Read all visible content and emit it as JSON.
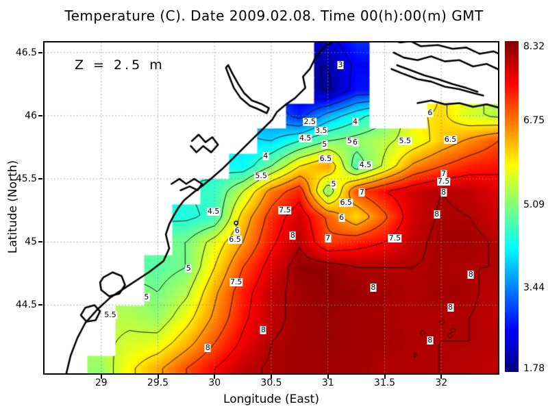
{
  "chart_data": {
    "type": "contour_heatmap",
    "title": "Temperature (C). Date 2009.02.08. Time 00(h):00(m) GMT",
    "xlabel": "Longitude (East)",
    "ylabel": "Latitude (North)",
    "annotation": "Z = 2.5 m",
    "xlim": [
      28.5,
      32.5
    ],
    "ylim": [
      43.96,
      46.58
    ],
    "xticks": [
      "29",
      "29.5",
      "30",
      "30.5",
      "31",
      "31.5",
      "32"
    ],
    "xtick_values": [
      29,
      29.5,
      30,
      30.5,
      31,
      31.5,
      32
    ],
    "yticks": [
      "44.5",
      "45",
      "45.5",
      "46",
      "46.5"
    ],
    "ytick_values": [
      44.5,
      45,
      45.5,
      46,
      46.5
    ],
    "grid_style": "dotted",
    "contour_interval": 0.5,
    "contour_levels": [
      2,
      2.5,
      3,
      3.5,
      4,
      4.5,
      5,
      5.5,
      6,
      6.5,
      7,
      7.5,
      8
    ],
    "colorbar": {
      "colormap": "jet",
      "min": 1.78,
      "max": 8.32,
      "labels": [
        "8.32",
        "6.75",
        "5.09",
        "3.44",
        "1.78"
      ],
      "label_values": [
        8.32,
        6.75,
        5.09,
        3.44,
        1.78
      ]
    },
    "field": {
      "units": "deg C",
      "lon_start": 28.5,
      "lon_step": 0.25,
      "lat_start": 46.6,
      "lat_step": -0.2,
      "land_value": null,
      "temps": [
        [
          null,
          null,
          null,
          null,
          null,
          null,
          null,
          null,
          null,
          null,
          2.3,
          2.9,
          null,
          null,
          null,
          null,
          null
        ],
        [
          null,
          null,
          null,
          null,
          null,
          null,
          null,
          null,
          null,
          null,
          2.0,
          2.6,
          null,
          null,
          null,
          null,
          null
        ],
        [
          null,
          null,
          null,
          null,
          null,
          null,
          null,
          null,
          null,
          null,
          1.9,
          2.7,
          null,
          null,
          null,
          null,
          null
        ],
        [
          null,
          null,
          null,
          null,
          null,
          null,
          null,
          null,
          null,
          2.8,
          3.7,
          4.3,
          null,
          null,
          6.1,
          5.6,
          5.4
        ],
        [
          null,
          null,
          null,
          null,
          null,
          null,
          null,
          null,
          4.0,
          4.5,
          5.0,
          5.2,
          5.4,
          5.7,
          6.2,
          6.6,
          7.0
        ],
        [
          null,
          null,
          null,
          null,
          null,
          null,
          null,
          4.2,
          5.0,
          6.0,
          6.5,
          4.7,
          5.6,
          6.6,
          7.0,
          7.3,
          7.4
        ],
        [
          null,
          null,
          null,
          null,
          null,
          null,
          4.6,
          5.5,
          6.7,
          7.3,
          5.1,
          7.0,
          7.5,
          7.8,
          8.0,
          7.9,
          7.7
        ],
        [
          null,
          null,
          null,
          null,
          null,
          4.4,
          4.6,
          6.2,
          7.2,
          7.8,
          6.9,
          6.1,
          6.9,
          7.8,
          8.05,
          8.0,
          7.8
        ],
        [
          null,
          null,
          null,
          null,
          null,
          5.0,
          5.7,
          6.5,
          7.4,
          7.95,
          7.1,
          7.3,
          7.5,
          7.9,
          8.1,
          8.1,
          7.95
        ],
        [
          null,
          null,
          null,
          null,
          4.8,
          5.0,
          6.0,
          7.0,
          7.7,
          8.2,
          8.2,
          8.0,
          8.0,
          8.0,
          8.05,
          8.0,
          8.0
        ],
        [
          null,
          null,
          null,
          null,
          5.0,
          5.4,
          6.4,
          7.3,
          7.9,
          8.1,
          8.2,
          8.15,
          8.1,
          8.0,
          8.1,
          8.05,
          7.9
        ],
        [
          null,
          null,
          null,
          5.4,
          5.2,
          5.8,
          6.6,
          7.4,
          7.9,
          8.1,
          8.15,
          8.1,
          8.05,
          8.0,
          8.0,
          8.0,
          7.9
        ],
        [
          null,
          null,
          null,
          5.6,
          5.7,
          6.3,
          7.0,
          7.6,
          8.0,
          8.1,
          8.15,
          8.1,
          8.1,
          8.0,
          8.0,
          8.0,
          7.95
        ],
        [
          null,
          null,
          5.2,
          5.9,
          6.4,
          7.0,
          7.5,
          7.9,
          8.05,
          8.1,
          8.1,
          8.1,
          8.0,
          8.0,
          8.0,
          7.95,
          7.9
        ]
      ]
    },
    "contour_labels": [
      {
        "v": "3",
        "lon": 31.11,
        "lat": 46.4
      },
      {
        "v": "2.5",
        "lon": 30.84,
        "lat": 45.95
      },
      {
        "v": "4",
        "lon": 31.24,
        "lat": 45.95
      },
      {
        "v": "3.5",
        "lon": 30.94,
        "lat": 45.88
      },
      {
        "v": "4.5",
        "lon": 30.8,
        "lat": 45.82
      },
      {
        "v": "5",
        "lon": 30.97,
        "lat": 45.77
      },
      {
        "v": "5",
        "lon": 31.19,
        "lat": 45.8
      },
      {
        "v": "6",
        "lon": 31.24,
        "lat": 45.79
      },
      {
        "v": "6",
        "lon": 31.9,
        "lat": 46.02
      },
      {
        "v": "5.5",
        "lon": 31.68,
        "lat": 45.8
      },
      {
        "v": "6.5",
        "lon": 32.08,
        "lat": 45.81
      },
      {
        "v": "6.5",
        "lon": 30.98,
        "lat": 45.66
      },
      {
        "v": "4.5",
        "lon": 31.33,
        "lat": 45.61
      },
      {
        "v": "4",
        "lon": 30.45,
        "lat": 45.68
      },
      {
        "v": "7",
        "lon": 32.02,
        "lat": 45.54
      },
      {
        "v": "7.5",
        "lon": 32.02,
        "lat": 45.48
      },
      {
        "v": "8",
        "lon": 32.02,
        "lat": 45.39
      },
      {
        "v": "5",
        "lon": 31.05,
        "lat": 45.46
      },
      {
        "v": "7",
        "lon": 31.3,
        "lat": 45.39
      },
      {
        "v": "6.5",
        "lon": 31.16,
        "lat": 45.31
      },
      {
        "v": "6",
        "lon": 31.12,
        "lat": 45.19
      },
      {
        "v": "7.5",
        "lon": 30.62,
        "lat": 45.25
      },
      {
        "v": "4.5",
        "lon": 29.99,
        "lat": 45.24
      },
      {
        "v": "5.5",
        "lon": 30.41,
        "lat": 45.52
      },
      {
        "v": "6",
        "lon": 30.2,
        "lat": 45.09
      },
      {
        "v": "6.5",
        "lon": 30.18,
        "lat": 45.02
      },
      {
        "v": "8",
        "lon": 30.69,
        "lat": 45.05
      },
      {
        "v": "7",
        "lon": 31.0,
        "lat": 45.03
      },
      {
        "v": "7.5",
        "lon": 31.59,
        "lat": 45.03
      },
      {
        "v": "8",
        "lon": 31.96,
        "lat": 45.22
      },
      {
        "v": "7.5",
        "lon": 30.19,
        "lat": 44.68
      },
      {
        "v": "5",
        "lon": 29.77,
        "lat": 44.79
      },
      {
        "v": "5",
        "lon": 29.4,
        "lat": 44.56
      },
      {
        "v": "5.5",
        "lon": 29.08,
        "lat": 44.42
      },
      {
        "v": "8",
        "lon": 31.4,
        "lat": 44.64
      },
      {
        "v": "8",
        "lon": 32.08,
        "lat": 44.48
      },
      {
        "v": "8",
        "lon": 31.9,
        "lat": 44.22
      },
      {
        "v": "8",
        "lon": 30.43,
        "lat": 44.3
      },
      {
        "v": "8",
        "lon": 29.94,
        "lat": 44.16
      },
      {
        "v": "8",
        "lon": 32.26,
        "lat": 44.74
      }
    ],
    "marker": {
      "lon": 30.19,
      "lat": 45.15
    },
    "coastlines": [
      [
        [
          31.07,
          46.6
        ],
        [
          30.96,
          46.54
        ],
        [
          30.89,
          46.46
        ],
        [
          30.84,
          46.37
        ],
        [
          30.78,
          46.31
        ],
        [
          30.8,
          46.22
        ],
        [
          30.71,
          46.14
        ],
        [
          30.63,
          46.09
        ],
        [
          30.55,
          46.03
        ],
        [
          30.51,
          45.97
        ],
        [
          30.42,
          45.89
        ],
        [
          30.34,
          45.82
        ],
        [
          30.25,
          45.74
        ],
        [
          30.16,
          45.66
        ],
        [
          30.07,
          45.58
        ],
        [
          29.98,
          45.51
        ],
        [
          29.9,
          45.45
        ],
        [
          29.81,
          45.39
        ],
        [
          29.73,
          45.33
        ],
        [
          29.68,
          45.27
        ],
        [
          29.64,
          45.21
        ],
        [
          29.6,
          45.14
        ],
        [
          29.57,
          45.06
        ],
        [
          29.6,
          44.95
        ],
        [
          29.55,
          44.85
        ],
        [
          29.42,
          44.76
        ],
        [
          29.25,
          44.66
        ],
        [
          29.08,
          44.56
        ],
        [
          28.96,
          44.46
        ],
        [
          28.86,
          44.36
        ],
        [
          28.79,
          44.24
        ],
        [
          28.73,
          44.1
        ],
        [
          28.69,
          43.95
        ]
      ],
      [
        [
          30.12,
          46.4
        ],
        [
          30.16,
          46.33
        ],
        [
          30.21,
          46.25
        ],
        [
          30.26,
          46.18
        ],
        [
          30.33,
          46.12
        ],
        [
          30.42,
          46.09
        ],
        [
          30.48,
          46.06
        ],
        [
          30.46,
          46.02
        ],
        [
          30.39,
          46.05
        ],
        [
          30.31,
          46.08
        ],
        [
          30.23,
          46.14
        ],
        [
          30.17,
          46.22
        ],
        [
          30.13,
          46.31
        ],
        [
          30.1,
          46.38
        ],
        [
          30.12,
          46.4
        ]
      ],
      [
        [
          29.8,
          45.8
        ],
        [
          29.86,
          45.85
        ],
        [
          29.92,
          45.79
        ],
        [
          29.98,
          45.83
        ],
        [
          30.03,
          45.77
        ],
        [
          29.97,
          45.71
        ],
        [
          29.9,
          45.76
        ],
        [
          29.84,
          45.71
        ],
        [
          29.79,
          45.76
        ]
      ],
      [
        [
          29.62,
          45.46
        ],
        [
          29.69,
          45.5
        ],
        [
          29.75,
          45.46
        ],
        [
          29.82,
          45.5
        ],
        [
          29.89,
          45.46
        ],
        [
          29.85,
          45.41
        ],
        [
          29.78,
          45.44
        ],
        [
          29.7,
          45.41
        ]
      ],
      [
        [
          29.02,
          44.72
        ],
        [
          29.1,
          44.76
        ],
        [
          29.18,
          44.73
        ],
        [
          29.21,
          44.66
        ],
        [
          29.16,
          44.59
        ],
        [
          29.07,
          44.57
        ],
        [
          29.0,
          44.62
        ],
        [
          28.99,
          44.68
        ],
        [
          29.02,
          44.72
        ]
      ],
      [
        [
          28.86,
          44.48
        ],
        [
          28.94,
          44.5
        ],
        [
          28.99,
          44.45
        ],
        [
          28.95,
          44.38
        ],
        [
          28.87,
          44.37
        ],
        [
          28.82,
          44.42
        ],
        [
          28.86,
          44.48
        ]
      ],
      [
        [
          31.55,
          46.6
        ],
        [
          31.64,
          46.58
        ],
        [
          31.73,
          46.59
        ],
        [
          31.82,
          46.55
        ],
        [
          31.97,
          46.56
        ],
        [
          32.1,
          46.53
        ],
        [
          32.22,
          46.54
        ],
        [
          32.34,
          46.49
        ],
        [
          32.46,
          46.51
        ],
        [
          32.56,
          46.47
        ]
      ],
      [
        [
          31.58,
          46.5
        ],
        [
          31.67,
          46.46
        ],
        [
          31.79,
          46.44
        ],
        [
          31.91,
          46.47
        ],
        [
          32.03,
          46.43
        ],
        [
          32.16,
          46.44
        ],
        [
          32.28,
          46.39
        ],
        [
          32.4,
          46.41
        ],
        [
          32.52,
          46.36
        ],
        [
          32.56,
          46.35
        ]
      ],
      [
        [
          31.56,
          46.37
        ],
        [
          31.67,
          46.33
        ],
        [
          31.79,
          46.29
        ],
        [
          31.91,
          46.27
        ],
        [
          32.03,
          46.23
        ],
        [
          32.16,
          46.21
        ],
        [
          32.28,
          46.18
        ],
        [
          32.37,
          46.16
        ]
      ],
      [
        [
          31.61,
          46.4
        ],
        [
          31.73,
          46.36
        ],
        [
          31.85,
          46.32
        ],
        [
          31.97,
          46.29
        ],
        [
          32.1,
          46.25
        ],
        [
          32.22,
          46.22
        ],
        [
          32.32,
          46.19
        ]
      ],
      [
        [
          31.79,
          46.1
        ],
        [
          31.91,
          46.12
        ],
        [
          32.03,
          46.09
        ],
        [
          32.16,
          46.1
        ],
        [
          32.28,
          46.07
        ],
        [
          32.4,
          46.09
        ],
        [
          32.52,
          46.06
        ],
        [
          32.56,
          46.05
        ]
      ]
    ],
    "colors": {
      "land": "#ffffff",
      "coastline": "#000000",
      "contour_line": "#000000",
      "grid_line": "#8f8f8f",
      "jet_min": "#000080",
      "jet_max": "#800000"
    }
  }
}
